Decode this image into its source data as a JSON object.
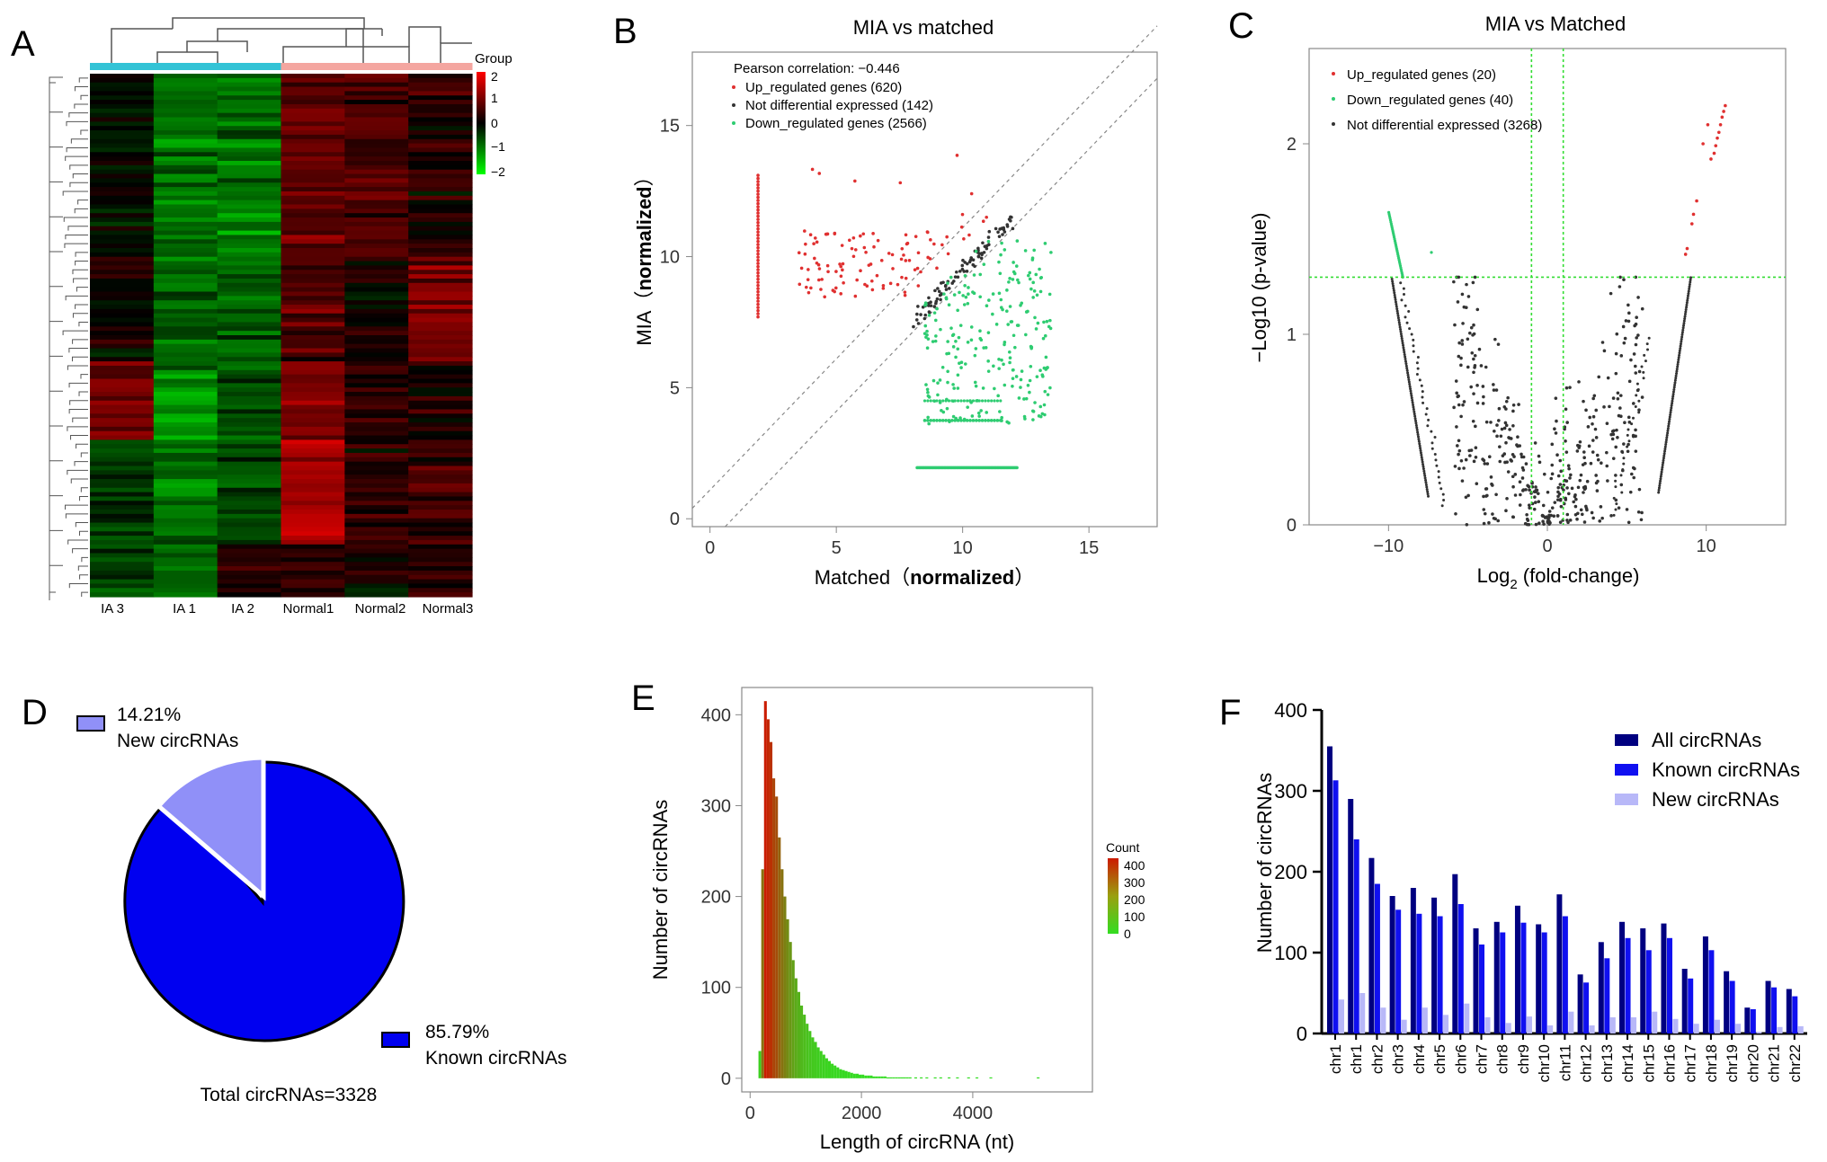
{
  "panel_letters": [
    "A",
    "B",
    "C",
    "D",
    "E",
    "F"
  ],
  "chart_data": [
    {
      "panel": "A",
      "type": "heatmap",
      "columns": [
        "IA 3",
        "IA 1",
        "IA 2",
        "Normal1",
        "Normal2",
        "Normal3"
      ],
      "group_label": "Group",
      "group_colors": [
        "#33c3d6",
        "#33c3d6",
        "#33c3d6",
        "#f4a6a0",
        "#f4a6a0",
        "#f4a6a0"
      ],
      "scale_ticks": [
        "2",
        "1",
        "0",
        "−1",
        "−2"
      ],
      "scale_colors": {
        "high": "#ff0000",
        "mid": "#000000",
        "low": "#00ff00"
      },
      "vlim": [
        -2,
        2
      ]
    },
    {
      "panel": "B",
      "type": "scatter",
      "title": "MIA vs matched",
      "xlabel_plain": "Matched（",
      "xlabel_bold": "normalized",
      "xlabel_close": "）",
      "ylabel_plain": "MIA（",
      "ylabel_bold": "normalized",
      "ylabel_close": "）",
      "xticks": [
        "0",
        "5",
        "10",
        "15"
      ],
      "yticks": [
        "0",
        "5",
        "10",
        "15"
      ],
      "xlim": [
        -0.7,
        17.7
      ],
      "ylim": [
        -0.3,
        17.8
      ],
      "annotation": "Pearson correlation: −0.446",
      "legend": [
        {
          "label": "Up_regulated genes (620)",
          "color": "#e03030"
        },
        {
          "label": "Not differential expressed (142)",
          "color": "#333333"
        },
        {
          "label": "Down_regulated genes (2566)",
          "color": "#2ecc71"
        }
      ]
    },
    {
      "panel": "C",
      "type": "scatter",
      "title": "MIA vs Matched",
      "xlabel_main": "Log",
      "xlabel_sub": "2",
      "xlabel_rest": " (fold-change)",
      "ylabel": "−Log10 (p-value)",
      "xticks": [
        "−10",
        "0",
        "10"
      ],
      "yticks": [
        "0",
        "1",
        "2"
      ],
      "xlim": [
        -15,
        15
      ],
      "ylim": [
        0,
        2.5
      ],
      "legend": [
        {
          "label": "Up_regulated genes (20)",
          "color": "#e03030"
        },
        {
          "label": "Down_regulated genes (40)",
          "color": "#2ecc71"
        },
        {
          "label": "Not differential expressed (3268)",
          "color": "#333333"
        }
      ]
    },
    {
      "panel": "D",
      "type": "pie",
      "slices": [
        {
          "label": "New circRNAs",
          "percent_label": "14.21%",
          "value": 14.21,
          "color": "#9090f8"
        },
        {
          "label": "Known circRNAs",
          "percent_label": "85.79%",
          "value": 85.79,
          "color": "#0000f0"
        }
      ],
      "caption": "Total circRNAs=3328"
    },
    {
      "panel": "E",
      "type": "bar",
      "xlabel": "Length of circRNA (nt)",
      "ylabel": "Number of circRNAs",
      "xticks": [
        "0",
        "2000",
        "4000"
      ],
      "yticks": [
        "0",
        "100",
        "200",
        "300",
        "400"
      ],
      "xlim": [
        -150,
        6150
      ],
      "ylim": [
        -15,
        430
      ],
      "colorbar_title": "Count",
      "colorbar_ticks": [
        "400",
        "300",
        "200",
        "100",
        "0"
      ],
      "bin_width": 50,
      "bins_start": 150,
      "counts": [
        30,
        230,
        415,
        395,
        370,
        330,
        310,
        265,
        230,
        200,
        175,
        150,
        130,
        110,
        95,
        80,
        70,
        60,
        52,
        45,
        40,
        34,
        30,
        26,
        22,
        19,
        16,
        14,
        12,
        10,
        9,
        8,
        7,
        6,
        5,
        5,
        4,
        4,
        3,
        3,
        3,
        2,
        2,
        2,
        2,
        2,
        1,
        1,
        1,
        1,
        1,
        1,
        1,
        1,
        1,
        0,
        1,
        0,
        1,
        0,
        1,
        0,
        0,
        1,
        0,
        1,
        0,
        0,
        1,
        0,
        0,
        1,
        0,
        0,
        0,
        1,
        0,
        0,
        1,
        0,
        0,
        0,
        0,
        1,
        0,
        0,
        0,
        0,
        0,
        0,
        0,
        0,
        0,
        0,
        0,
        0,
        0,
        0,
        0,
        0,
        1
      ]
    },
    {
      "panel": "F",
      "type": "bar",
      "ylabel": "Number of circRNAs",
      "yticks": [
        "0",
        "100",
        "200",
        "300",
        "400"
      ],
      "ylim": [
        0,
        400
      ],
      "categories": [
        "chr1",
        "chr1",
        "chr2",
        "chr3",
        "chr4",
        "chr5",
        "chr6",
        "chr7",
        "chr8",
        "chr9",
        "chr10",
        "chr11",
        "chr12",
        "chr13",
        "chr14",
        "chr15",
        "chr16",
        "chr17",
        "chr18",
        "chr19",
        "chr20",
        "chr21",
        "chr22"
      ],
      "series": [
        {
          "name": "All circRNAs",
          "color": "#000080",
          "values": [
            355,
            290,
            217,
            170,
            180,
            168,
            197,
            130,
            138,
            158,
            135,
            172,
            73,
            113,
            138,
            130,
            136,
            80,
            120,
            77,
            32,
            65,
            55
          ]
        },
        {
          "name": "Known circRNAs",
          "color": "#1010f0",
          "values": [
            313,
            240,
            185,
            153,
            148,
            145,
            160,
            110,
            125,
            137,
            125,
            145,
            63,
            93,
            118,
            103,
            118,
            68,
            103,
            65,
            30,
            57,
            46
          ]
        },
        {
          "name": "New circRNAs",
          "color": "#b8b8f8",
          "values": [
            42,
            50,
            32,
            17,
            32,
            23,
            37,
            20,
            13,
            21,
            10,
            27,
            10,
            20,
            20,
            27,
            18,
            12,
            17,
            12,
            2,
            8,
            9
          ]
        }
      ]
    }
  ]
}
